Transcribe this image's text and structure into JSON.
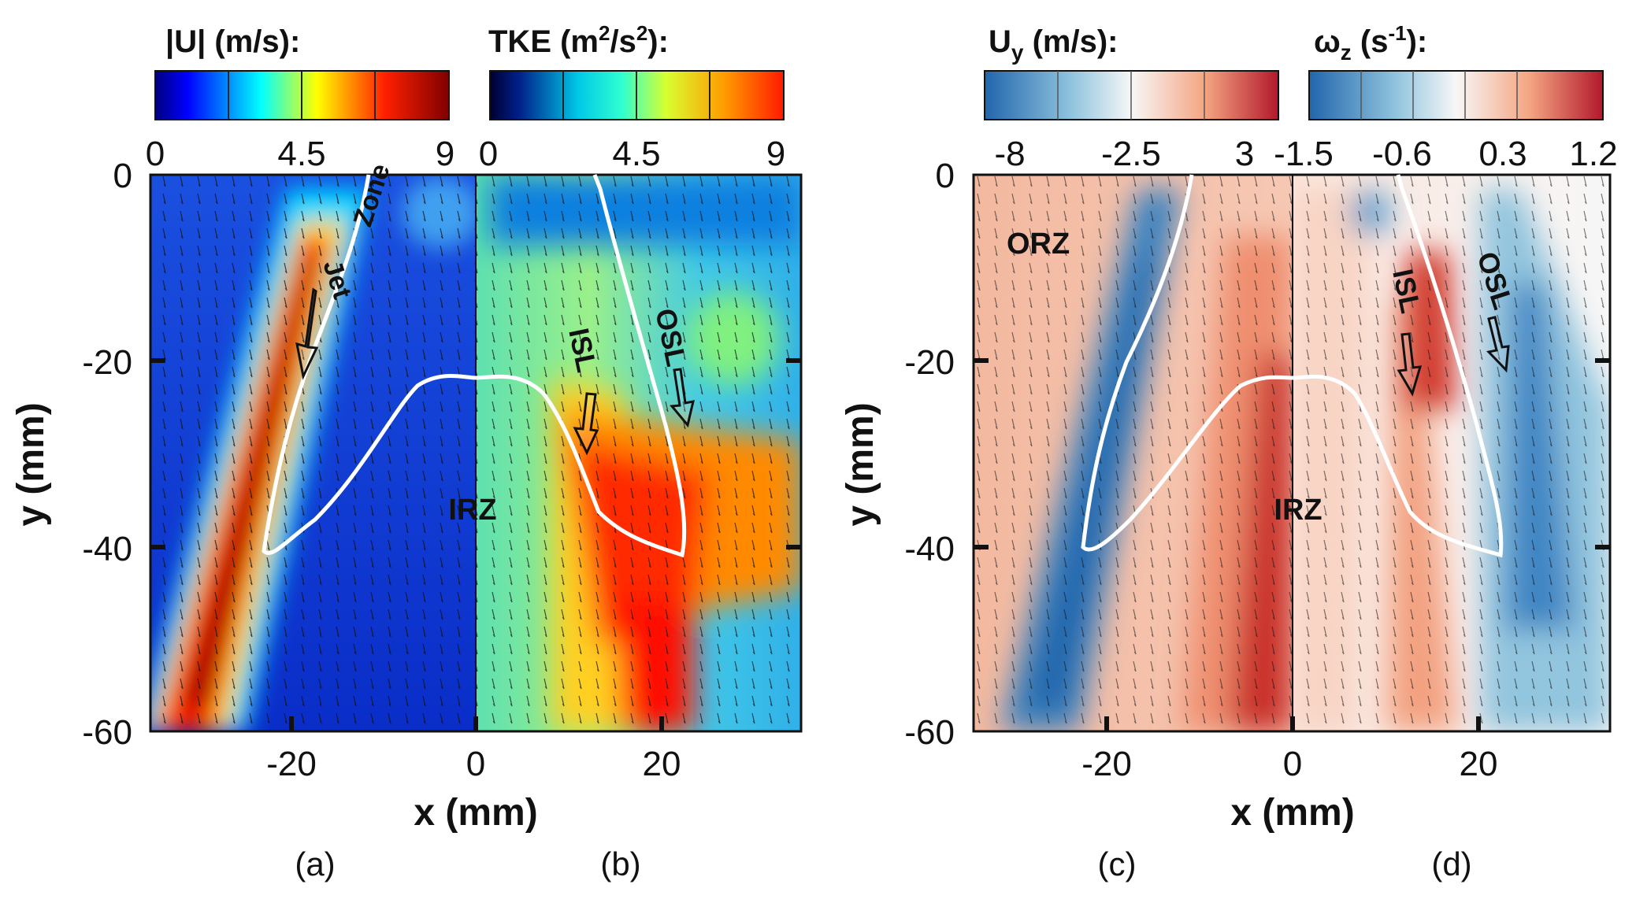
{
  "chart_data": [
    {
      "type": "heatmap",
      "panel_label": "(a)",
      "colorbar": {
        "title": "|U| (m/s):",
        "ticks": [
          "0",
          "4.5",
          "9"
        ],
        "range": [
          0,
          9
        ],
        "colormap": "jet"
      },
      "xlabel": "x (mm)",
      "ylabel": "y (mm)",
      "xticks": [
        "-20",
        "0"
      ],
      "yticks": [
        "0",
        "-20",
        "-40",
        "-60"
      ],
      "xlim": [
        -34,
        0
      ],
      "ylim": [
        -60,
        0
      ],
      "annotations": [
        "Jet",
        "Zone",
        "IRZ"
      ]
    },
    {
      "type": "heatmap",
      "panel_label": "(b)",
      "colorbar": {
        "title": "TKE (m²/s²):",
        "ticks": [
          "0",
          "4.5",
          "9"
        ],
        "range": [
          0,
          9
        ],
        "colormap": "jet"
      },
      "xlabel": "x (mm)",
      "xticks": [
        "0",
        "20"
      ],
      "xlim": [
        0,
        34
      ],
      "ylim": [
        -60,
        0
      ],
      "annotations": [
        "ISL",
        "OSL"
      ]
    },
    {
      "type": "heatmap",
      "panel_label": "(c)",
      "colorbar": {
        "title": "Uy (m/s):",
        "ticks": [
          "-8",
          "-2.5",
          "3"
        ],
        "range": [
          -8,
          3
        ],
        "colormap": "diverging"
      },
      "xlabel": "x (mm)",
      "ylabel": "y (mm)",
      "xticks": [
        "-20",
        "0"
      ],
      "yticks": [
        "0",
        "-20",
        "-40",
        "-60"
      ],
      "xlim": [
        -34,
        0
      ],
      "ylim": [
        -60,
        0
      ],
      "annotations": [
        "ORZ",
        "IRZ"
      ]
    },
    {
      "type": "heatmap",
      "panel_label": "(d)",
      "colorbar": {
        "title": "ωz (s⁻¹):",
        "ticks": [
          "-1.5",
          "-0.6",
          "0.3",
          "1.2"
        ],
        "range": [
          -1.5,
          1.2
        ],
        "colormap": "diverging"
      },
      "xlabel": "x (mm)",
      "xticks": [
        "0",
        "20"
      ],
      "xlim": [
        0,
        34
      ],
      "ylim": [
        -60,
        0
      ],
      "annotations": [
        "ISL",
        "OSL"
      ]
    }
  ],
  "labels": {
    "cb1_title": "|U| (m/s):",
    "cb2_title": "TKE (m",
    "cb2_sup": "2",
    "cb2_mid": "/s",
    "cb2_sup2": "2",
    "cb2_end": "):",
    "cb3_title": "U",
    "cb3_sub": "y",
    "cb3_end": " (m/s):",
    "cb4_title": "ω",
    "cb4_sub": "z",
    "cb4_mid": " (s",
    "cb4_sup": "-1",
    "cb4_end": "):",
    "cb1_ticks": [
      "0",
      "4.5",
      "9"
    ],
    "cb2_ticks": [
      "0",
      "4.5",
      "9"
    ],
    "cb3_ticks": [
      "-8",
      "-2.5",
      "3"
    ],
    "cb4_ticks": [
      "-1.5",
      "-0.6",
      "0.3",
      "1.2"
    ],
    "y_ticks": [
      "0",
      "-20",
      "-40",
      "-60"
    ],
    "x_ticks_left": [
      "-20",
      "0",
      "20"
    ],
    "x_ticks_right": [
      "-20",
      "0",
      "20"
    ],
    "ylabel": "y (mm)",
    "xlabel": "x (mm)",
    "panel_a": "(a)",
    "panel_b": "(b)",
    "panel_c": "(c)",
    "panel_d": "(d)",
    "jet": "Jet",
    "zone": "Zone",
    "irz": "IRZ",
    "isl": "ISL",
    "osl": "OSL",
    "orz": "ORZ"
  },
  "colors": {
    "jet_dark_blue": "#00007f",
    "jet_blue": "#0000ff",
    "jet_cyan": "#00ffff",
    "jet_yellow": "#ffff00",
    "jet_red": "#ff0000",
    "jet_dark_red": "#7f0000",
    "div_blue": "#2166ac",
    "div_white": "#f7f7f7",
    "div_red": "#b2182b"
  }
}
